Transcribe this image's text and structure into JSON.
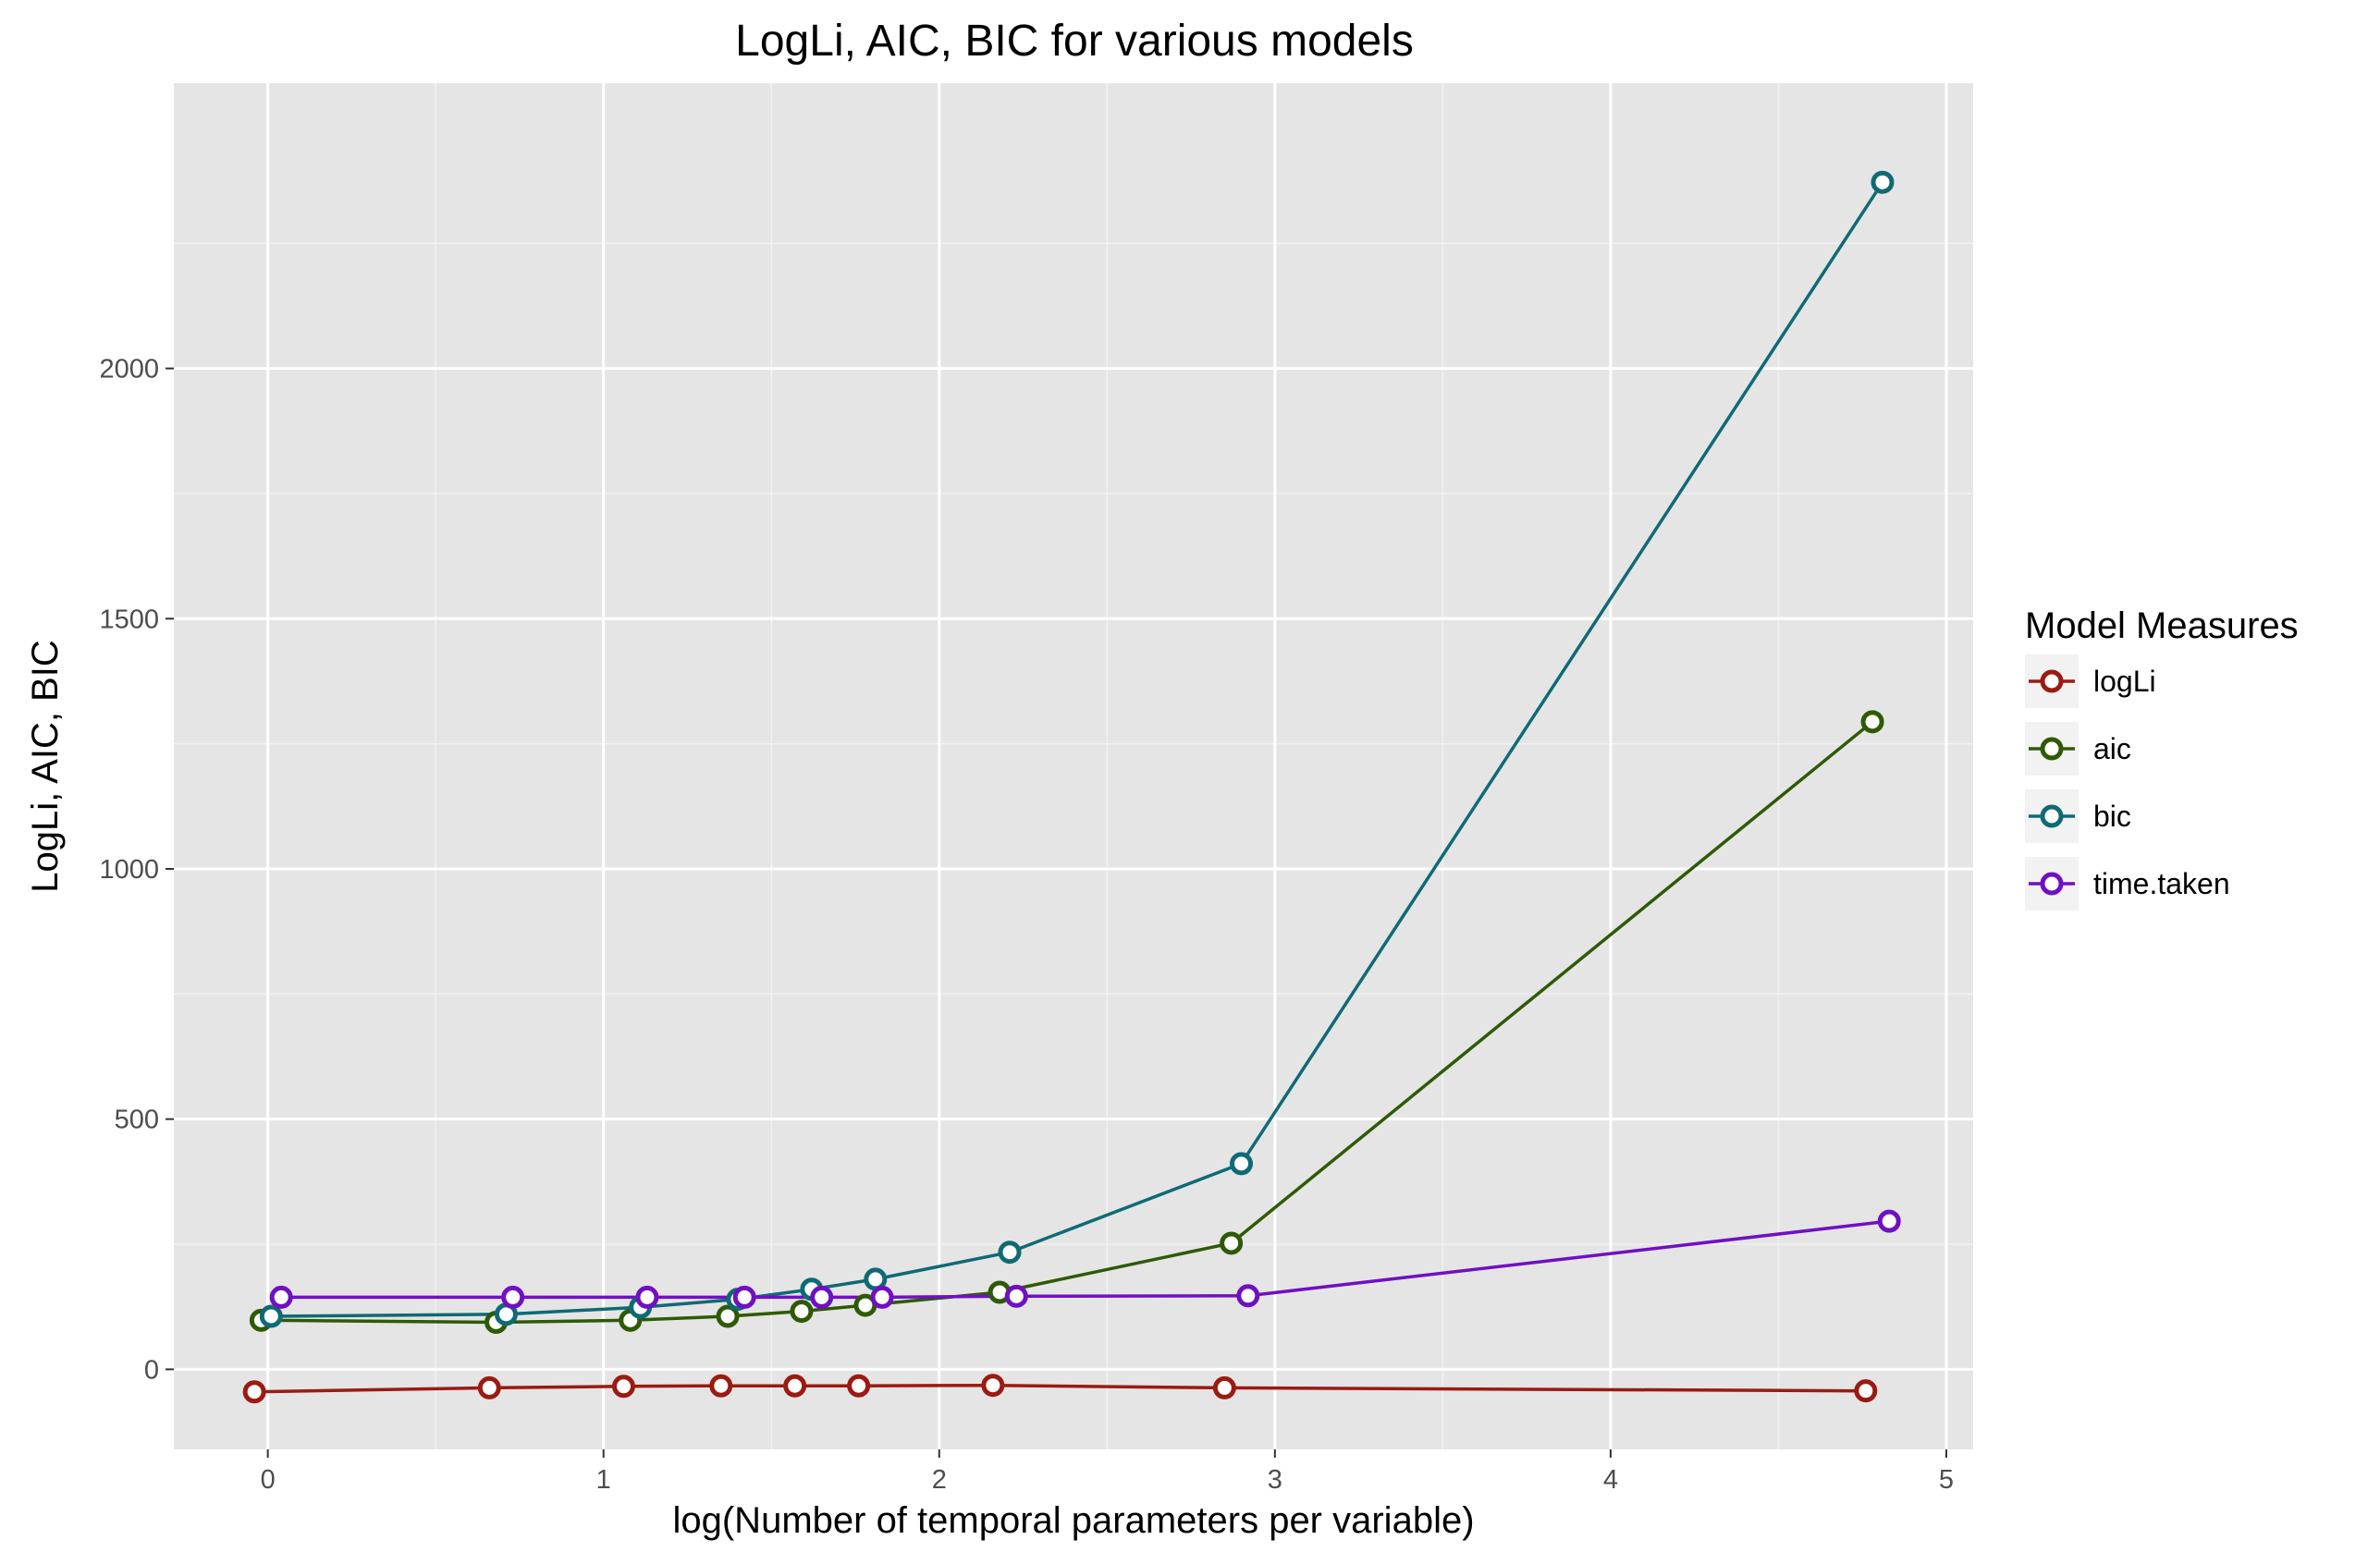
{
  "chart_data": {
    "type": "line",
    "title": "LogLi, AIC, BIC for various models",
    "xlabel": "log(Number of temporal parameters per variable)",
    "ylabel": "LogLi, AIC, BIC",
    "xlim": [
      -0.28,
      5.08
    ],
    "ylim": [
      -160,
      2570
    ],
    "x_ticks": [
      0,
      1,
      2,
      3,
      4,
      5
    ],
    "y_ticks": [
      0,
      500,
      1000,
      1500,
      2000
    ],
    "x_tick_labels": [
      "0",
      "1",
      "2",
      "3",
      "4",
      "5"
    ],
    "y_tick_labels": [
      "0",
      "500",
      "1000",
      "1500",
      "2000"
    ],
    "grid": true,
    "background": "#e5e5e5",
    "legend": {
      "title": "Model Measures",
      "position": "right"
    },
    "series": [
      {
        "name": "logLi",
        "color": "#9a1b12",
        "x": [
          -0.04,
          0.66,
          1.06,
          1.35,
          1.57,
          1.76,
          2.16,
          2.85,
          4.76
        ],
        "y": [
          -45,
          -37,
          -34,
          -33,
          -33,
          -33,
          -32,
          -37,
          -43
        ]
      },
      {
        "name": "aic",
        "color": "#2e5a06",
        "x": [
          -0.02,
          0.68,
          1.08,
          1.37,
          1.59,
          1.78,
          2.18,
          2.87,
          4.78
        ],
        "y": [
          98,
          94,
          98,
          106,
          116,
          128,
          154,
          252,
          1294
        ]
      },
      {
        "name": "bic",
        "color": "#0f6a75",
        "x": [
          0.01,
          0.71,
          1.11,
          1.4,
          1.62,
          1.81,
          2.21,
          2.9,
          4.81
        ],
        "y": [
          106,
          110,
          124,
          140,
          160,
          180,
          234,
          411,
          2372
        ]
      },
      {
        "name": "time.taken",
        "color": "#7010c2",
        "x": [
          0.04,
          0.73,
          1.13,
          1.42,
          1.65,
          1.83,
          2.23,
          2.92,
          4.83
        ],
        "y": [
          144,
          144,
          144,
          144,
          144,
          144,
          146,
          147,
          296
        ]
      }
    ]
  }
}
